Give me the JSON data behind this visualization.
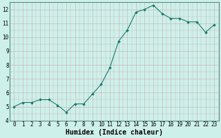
{
  "x": [
    0,
    1,
    2,
    3,
    4,
    5,
    6,
    7,
    8,
    9,
    10,
    11,
    12,
    13,
    14,
    15,
    16,
    17,
    18,
    19,
    20,
    21,
    22,
    23
  ],
  "y": [
    5.0,
    5.3,
    5.3,
    5.5,
    5.5,
    5.1,
    4.6,
    5.2,
    5.2,
    5.9,
    6.6,
    7.8,
    9.7,
    10.5,
    11.8,
    12.0,
    12.3,
    11.7,
    11.35,
    11.35,
    11.1,
    11.1,
    10.35,
    10.9
  ],
  "xlabel": "Humidex (Indice chaleur)",
  "xlim": [
    -0.5,
    23.5
  ],
  "ylim": [
    4,
    12.5
  ],
  "yticks": [
    4,
    5,
    6,
    7,
    8,
    9,
    10,
    11,
    12
  ],
  "xticks": [
    0,
    1,
    2,
    3,
    4,
    5,
    6,
    7,
    8,
    9,
    10,
    11,
    12,
    13,
    14,
    15,
    16,
    17,
    18,
    19,
    20,
    21,
    22,
    23
  ],
  "line_color": "#1a7a6e",
  "marker": "D",
  "marker_size": 1.8,
  "bg_color": "#cef0ea",
  "grid_color_major": "#c8b8b8",
  "axes_edge_color": "#5a8a80",
  "tick_label_fontsize": 5.5,
  "xlabel_fontsize": 7.0
}
